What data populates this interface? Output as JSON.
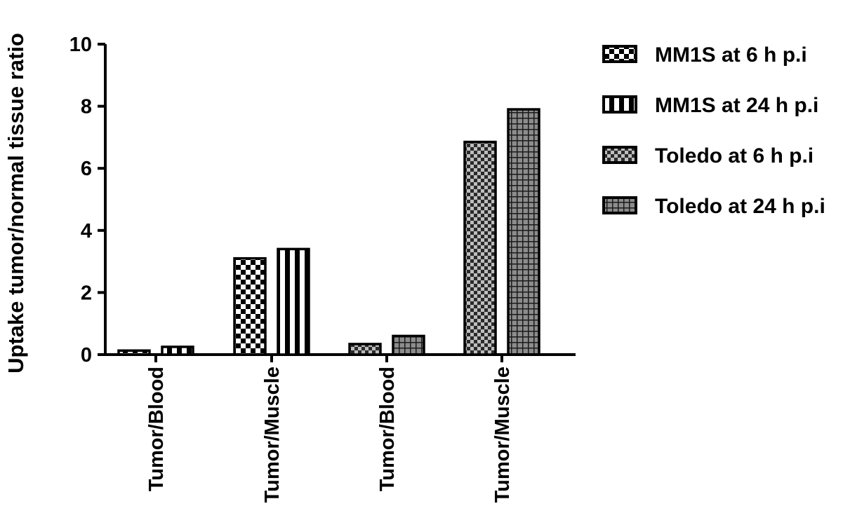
{
  "chart_data": {
    "type": "bar",
    "ylabel": "Uptake tumor/normal tissue ratio",
    "xlabel": "",
    "ylim": [
      0,
      10
    ],
    "y_ticks": [
      0,
      2,
      4,
      6,
      8,
      10
    ],
    "grid": false,
    "legend_position": "right",
    "groups": [
      {
        "label": "Tumor/Blood",
        "bars": [
          {
            "series": "MM1S at 6 h p.i",
            "value": 0.13
          },
          {
            "series": "MM1S at 24 h p.i",
            "value": 0.25
          }
        ]
      },
      {
        "label": "Tumor/Muscle",
        "bars": [
          {
            "series": "MM1S at 6 h p.i",
            "value": 3.1
          },
          {
            "series": "MM1S at 24 h p.i",
            "value": 3.4
          }
        ]
      },
      {
        "label": "Tumor/Blood",
        "bars": [
          {
            "series": "Toledo at 6 h p.i",
            "value": 0.34
          },
          {
            "series": "Toledo at 24 h p.i",
            "value": 0.6
          }
        ]
      },
      {
        "label": "Tumor/Muscle",
        "bars": [
          {
            "series": "Toledo at 6 h p.i",
            "value": 6.85
          },
          {
            "series": "Toledo at 24 h p.i",
            "value": 7.9
          }
        ]
      }
    ],
    "series": [
      {
        "name": "MM1S at 6 h p.i",
        "pattern": "checker-white"
      },
      {
        "name": "MM1S at 24 h p.i",
        "pattern": "vertical-stripes"
      },
      {
        "name": "Toledo at 6 h p.i",
        "pattern": "checker-grey"
      },
      {
        "name": "Toledo at 24 h p.i",
        "pattern": "grid-grey"
      }
    ]
  }
}
